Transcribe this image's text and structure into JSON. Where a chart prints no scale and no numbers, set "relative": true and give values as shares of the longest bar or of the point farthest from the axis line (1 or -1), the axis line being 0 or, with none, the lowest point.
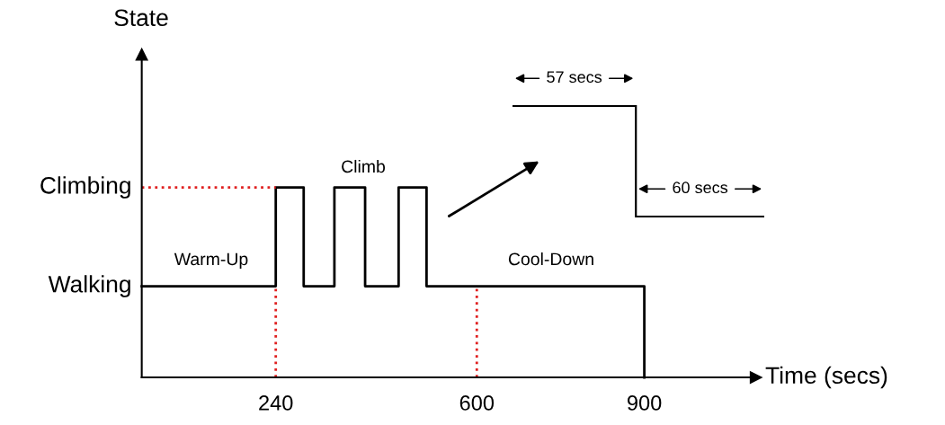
{
  "chart_data": [
    {
      "type": "step",
      "xlabel": "Time (secs)",
      "relative": true,
      "xlim": [
        0,
        1100
      ],
      "xticks": [
        240,
        600,
        900
      ],
      "grid": false,
      "legend": false,
      "marker": "none",
      "series": [
        {
          "color": "#000000",
          "line_style": "solid",
          "x": [
            0,
            240,
            290,
            345,
            400,
            460,
            510,
            900,
            900
          ],
          "values": [
            0.48,
            1,
            0.48,
            1,
            0.48,
            1,
            0.48,
            0,
            0
          ]
        },
        {
          "type": "line",
          "color": "#e02020",
          "line_style": "dotted",
          "x": [
            0,
            240
          ],
          "values": [
            1,
            1
          ]
        },
        {
          "type": "line",
          "color": "#e02020",
          "line_style": "dotted",
          "x": [
            240,
            240
          ],
          "values": [
            0,
            0.48
          ]
        },
        {
          "type": "line",
          "color": "#e02020",
          "line_style": "dotted",
          "x": [
            600,
            600
          ],
          "values": [
            0,
            0.48
          ]
        }
      ],
      "annotations": [
        {
          "text": "Walking",
          "x": 0,
          "y": 0.48
        },
        {
          "text": "Climbing",
          "x": 0,
          "y": 1
        },
        "State",
        "Warm-Up",
        "Climb",
        "Cool-Down"
      ]
    },
    {
      "type": "other",
      "annotations": [
        "57 secs",
        "60 secs"
      ]
    }
  ]
}
